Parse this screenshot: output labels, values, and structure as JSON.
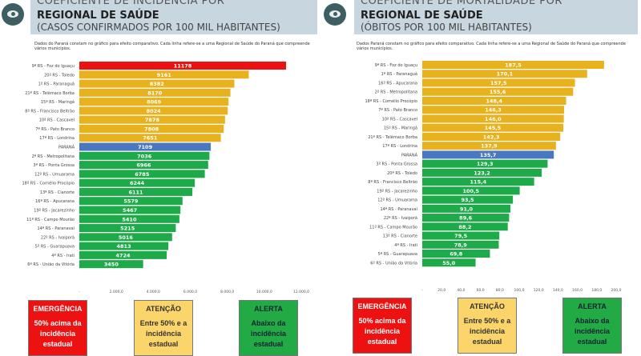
{
  "colors": {
    "emergency": "#ee1111",
    "attention": "#e8b21e",
    "state": "#4a78c0",
    "alert": "#1faa4a"
  },
  "logo_icon": "health-eye-logo",
  "legend": [
    {
      "title": "EMERGÊNCIA",
      "text": "50% acima da incidência estadual",
      "color": "#ee1111"
    },
    {
      "title": "ATENÇÃO",
      "text": "Entre 50% e a incidência estadual",
      "color": "#fbd46a"
    },
    {
      "title": "ALERTA",
      "text": "Abaixo da incidência estadual",
      "color": "#22aa44"
    }
  ],
  "chart_data": [
    {
      "type": "bar",
      "orientation": "horizontal",
      "title": "COEFICIENTE DE INCIDÊNCIA POR",
      "title2": "REGIONAL DE SAÚDE",
      "subtitle": "(CASOS CONFIRMADOS POR 100 MIL HABITANTES)",
      "note": "Dados do Paraná constam no gráfico para efeito comparativo. Cada linha refere-se a uma Regional de Saúde do Paraná que compreende vários municípios.",
      "xlim": [
        0,
        12000
      ],
      "ticks": [
        "-",
        "2.000,0",
        "4.000,0",
        "6.000,0",
        "8.000,0",
        "10.000,0",
        "12.000,0"
      ],
      "categories": [
        "9ª RS - Foz do Iguaçu",
        "20ª RS - Toledo",
        "1ª RS - Paranaguá",
        "21ª RS - Telêmaco Borba",
        "15ª RS - Maringá",
        "8ª RS - Francisco Beltrão",
        "10ª RS - Cascavel",
        "7ª RS - Pato Branco",
        "17ª RS - Londrina",
        "PARANÁ",
        "2ª RS - Metropolitana",
        "3ª RS - Ponta Grossa",
        "12ª RS - Umuarama",
        "18ª RS - Cornélio Procópio",
        "13ª RS - Cianorte",
        "16ª RS - Apucarana",
        "19ª RS - Jacarezinho",
        "11ª RS - Campo Mourão",
        "14ª RS - Paranavaí",
        "22ª RS - Ivaiporã",
        "5ª RS - Guarapuava",
        "4ª RS - Irati",
        "6ª RS - União da Vitória"
      ],
      "values": [
        11178,
        9161,
        8382,
        8170,
        8069,
        8024,
        7878,
        7808,
        7651,
        7109,
        7036,
        6966,
        6785,
        6244,
        6111,
        5579,
        5467,
        5410,
        5215,
        5016,
        4813,
        4724,
        3450
      ],
      "labels": [
        "11178",
        "9161",
        "8382",
        "8170",
        "8069",
        "8024",
        "7878",
        "7808",
        "7651",
        "7109",
        "7036",
        "6966",
        "6785",
        "6244",
        "6111",
        "5579",
        "5467",
        "5410",
        "5215",
        "5016",
        "4813",
        "4724",
        "3450"
      ],
      "status": [
        "emergency",
        "attention",
        "attention",
        "attention",
        "attention",
        "attention",
        "attention",
        "attention",
        "attention",
        "state",
        "alert",
        "alert",
        "alert",
        "alert",
        "alert",
        "alert",
        "alert",
        "alert",
        "alert",
        "alert",
        "alert",
        "alert",
        "alert"
      ]
    },
    {
      "type": "bar",
      "orientation": "horizontal",
      "title": "COEFICIENTE DE MORTALIDADE POR",
      "title2": "REGIONAL DE SAÚDE",
      "subtitle": "(ÓBITOS POR 100 MIL HABITANTES)",
      "note": "Dados Paraná constam no gráfico para efeito comparativo. Cada linha refere-se a uma Regional de Saúde do Paraná que compreende vários municípios.",
      "xlim": [
        0,
        200
      ],
      "ticks": [
        "-",
        "20,0",
        "40,0",
        "60,0",
        "80,0",
        "100,0",
        "120,0",
        "140,0",
        "160,0",
        "180,0",
        "200,0"
      ],
      "categories": [
        "9ª RS - Foz do Iguaçu",
        "1ª RS - Paranaguá",
        "16ª RS - Apucarana",
        "2ª RS - Metropolitana",
        "18ª RS - Cornélio Procópio",
        "7ª RS - Pato Branco",
        "10ª RS - Cascavel",
        "15ª RS - Maringá",
        "21ª RS - Telêmaco Borba",
        "17ª RS - Londrina",
        "PARANÁ",
        "3ª RS - Ponta Grossa",
        "20ª RS - Toledo",
        "8ª RS - Francisco Beltrão",
        "19ª RS - Jacarezinho",
        "12ª RS - Umuarama",
        "14ª RS - Paranavaí",
        "22ª RS - Ivaiporã",
        "11ª RS - Campo Mourão",
        "13ª RS - Cianorte",
        "4ª RS - Irati",
        "5ª RS - Guarapuava",
        "6ª RS - União da Vitória"
      ],
      "values": [
        187.5,
        170.1,
        157.5,
        155.6,
        148.4,
        146.3,
        146.0,
        145.5,
        142.3,
        137.9,
        135.7,
        129.3,
        123.2,
        115.4,
        100.5,
        93.5,
        91.0,
        89.6,
        88.2,
        79.5,
        78.9,
        69.8,
        55.0
      ],
      "labels": [
        "187,5",
        "170,1",
        "157,5",
        "155,6",
        "148,4",
        "146,3",
        "146,0",
        "145,5",
        "142,3",
        "137,9",
        "135,7",
        "129,3",
        "123,2",
        "115,4",
        "100,5",
        "93,5",
        "91,0",
        "89,6",
        "88,2",
        "79,5",
        "78,9",
        "69,8",
        "55,0"
      ],
      "status": [
        "attention",
        "attention",
        "attention",
        "attention",
        "attention",
        "attention",
        "attention",
        "attention",
        "attention",
        "attention",
        "state",
        "alert",
        "alert",
        "alert",
        "alert",
        "alert",
        "alert",
        "alert",
        "alert",
        "alert",
        "alert",
        "alert",
        "alert"
      ]
    }
  ]
}
